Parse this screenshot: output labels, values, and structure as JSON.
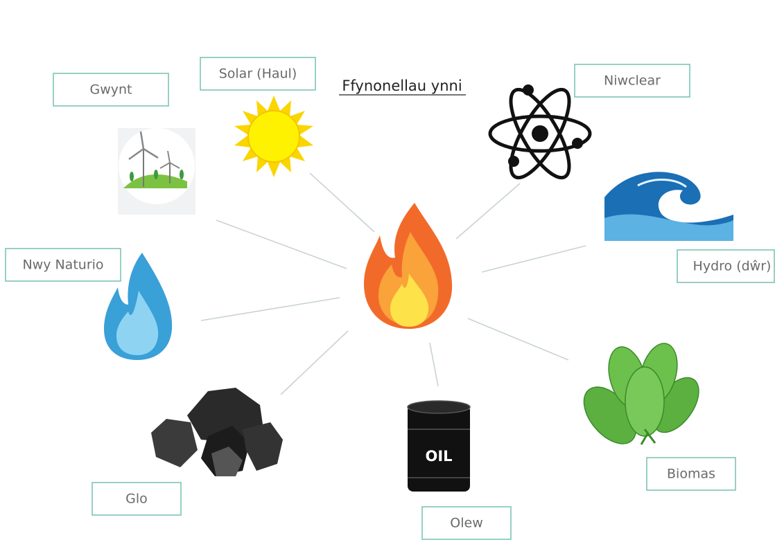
{
  "title": "Ffynonellau ynni",
  "nodes": [
    {
      "label": "Gwynt"
    },
    {
      "label": "Solar (Haul)"
    },
    {
      "label": "Niwclear"
    },
    {
      "label": "Hydro (dŵr)"
    },
    {
      "label": "Nwy Naturio"
    },
    {
      "label": "Glo"
    },
    {
      "label": "Olew"
    },
    {
      "label": "Biomas"
    }
  ],
  "barrel_text": "OIL"
}
